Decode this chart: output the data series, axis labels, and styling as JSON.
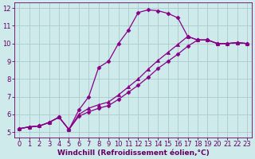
{
  "xlabel": "Windchill (Refroidissement éolien,°C)",
  "background_color": "#ceeaea",
  "grid_color": "#aacccc",
  "line_color": "#880088",
  "xlim": [
    -0.5,
    23.5
  ],
  "ylim": [
    4.7,
    12.3
  ],
  "yticks": [
    5,
    6,
    7,
    8,
    9,
    10,
    11,
    12
  ],
  "xticks": [
    0,
    1,
    2,
    3,
    4,
    5,
    6,
    7,
    8,
    9,
    10,
    11,
    12,
    13,
    14,
    15,
    16,
    17,
    18,
    19,
    20,
    21,
    22,
    23
  ],
  "line1_x": [
    0,
    1,
    2,
    3,
    4,
    5,
    6,
    7,
    8,
    9,
    10,
    11,
    12,
    13,
    14,
    15,
    16,
    17,
    18,
    19,
    20,
    21,
    22,
    23
  ],
  "line1_y": [
    5.2,
    5.3,
    5.35,
    5.55,
    5.85,
    5.15,
    6.25,
    7.0,
    8.65,
    9.0,
    10.0,
    10.75,
    11.75,
    11.9,
    11.85,
    11.7,
    11.45,
    10.4,
    10.2,
    10.2,
    10.0,
    10.0,
    10.05,
    10.0
  ],
  "line2_x": [
    0,
    1,
    2,
    3,
    4,
    5,
    6,
    7,
    8,
    9,
    10,
    11,
    12,
    13,
    14,
    15,
    16,
    17,
    18,
    19,
    20,
    21,
    22,
    23
  ],
  "line2_y": [
    5.2,
    5.3,
    5.35,
    5.55,
    5.85,
    5.15,
    6.0,
    6.35,
    6.55,
    6.7,
    7.1,
    7.55,
    8.0,
    8.55,
    9.05,
    9.5,
    9.95,
    10.4,
    10.2,
    10.2,
    10.0,
    10.0,
    10.05,
    10.0
  ],
  "line3_x": [
    0,
    1,
    2,
    3,
    4,
    5,
    6,
    7,
    8,
    9,
    10,
    11,
    12,
    13,
    14,
    15,
    16,
    17,
    18,
    19,
    20,
    21,
    22,
    23
  ],
  "line3_y": [
    5.2,
    5.3,
    5.35,
    5.55,
    5.85,
    5.15,
    5.9,
    6.15,
    6.35,
    6.5,
    6.85,
    7.25,
    7.65,
    8.1,
    8.6,
    9.0,
    9.4,
    9.85,
    10.2,
    10.2,
    10.0,
    10.0,
    10.05,
    10.0
  ],
  "marker": "D",
  "marker2": "^",
  "markersize": 2.5,
  "linewidth": 0.9,
  "font_color": "#660066",
  "xlabel_fontsize": 6.5,
  "tick_fontsize": 6.0
}
